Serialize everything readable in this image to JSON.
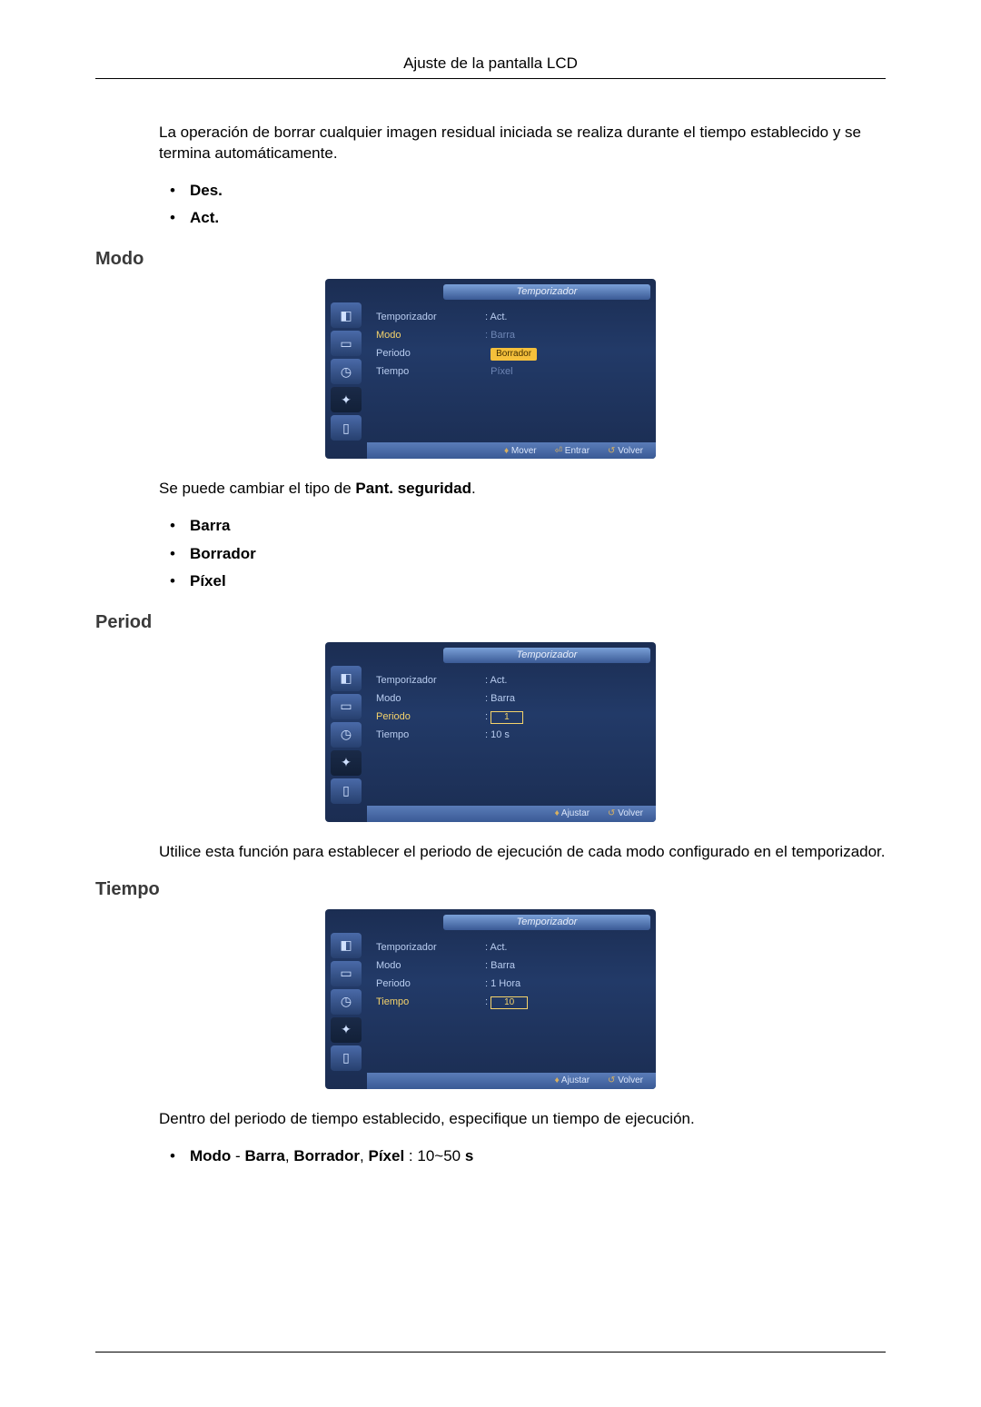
{
  "header": {
    "title": "Ajuste de la pantalla LCD"
  },
  "intro": {
    "text": "La operación de borrar cualquier imagen residual iniciada se realiza durante el tiempo establecido y se termina automáticamente.",
    "items": [
      "Des.",
      "Act."
    ]
  },
  "modo": {
    "heading": "Modo",
    "text_pre": "Se puede cambiar el tipo de ",
    "text_bold": "Pant. seguridad",
    "text_post": ".",
    "items": [
      "Barra",
      "Borrador",
      "Píxel"
    ],
    "osd": {
      "title": "Temporizador",
      "labels": {
        "l1": "Temporizador",
        "l2": "Modo",
        "l3": "Periodo",
        "l4": "Tiempo"
      },
      "vals": {
        "v1": ": Act.",
        "v2_a": "Barra",
        "v2_b": "Borrador",
        "v2_c": "Píxel"
      },
      "foot": {
        "a": "Mover",
        "b": "Entrar",
        "c": "Volver"
      },
      "colors": {
        "bg_top": "#1b2d52",
        "accent": "#f5d36b",
        "highlight_bg": "#f5c03b"
      }
    }
  },
  "period": {
    "heading": "Period",
    "text": "Utilice esta función para establecer el periodo de ejecución de cada modo configurado en el temporizador.",
    "osd": {
      "title": "Temporizador",
      "labels": {
        "l1": "Temporizador",
        "l2": "Modo",
        "l3": "Periodo",
        "l4": "Tiempo"
      },
      "vals": {
        "v1": ": Act.",
        "v2": ": Barra",
        "v3_num": "1",
        "v4": ": 10 s"
      },
      "foot": {
        "a": "Ajustar",
        "b": "Volver"
      }
    }
  },
  "tiempo": {
    "heading": "Tiempo",
    "text": "Dentro del periodo de tiempo establecido, especifique un tiempo de ejecución.",
    "spec_a": "Modo",
    "spec_b": " - ",
    "spec_c": "Barra",
    "spec_d": ", ",
    "spec_e": "Borrador",
    "spec_f": ", ",
    "spec_g": "Píxel",
    "spec_h": " : 10~50 ",
    "spec_i": "s",
    "osd": {
      "title": "Temporizador",
      "labels": {
        "l1": "Temporizador",
        "l2": "Modo",
        "l3": "Periodo",
        "l4": "Tiempo"
      },
      "vals": {
        "v1": ": Act.",
        "v2": ": Barra",
        "v3": ": 1 Hora",
        "v4_num": "10"
      },
      "foot": {
        "a": "Ajustar",
        "b": "Volver"
      }
    }
  }
}
